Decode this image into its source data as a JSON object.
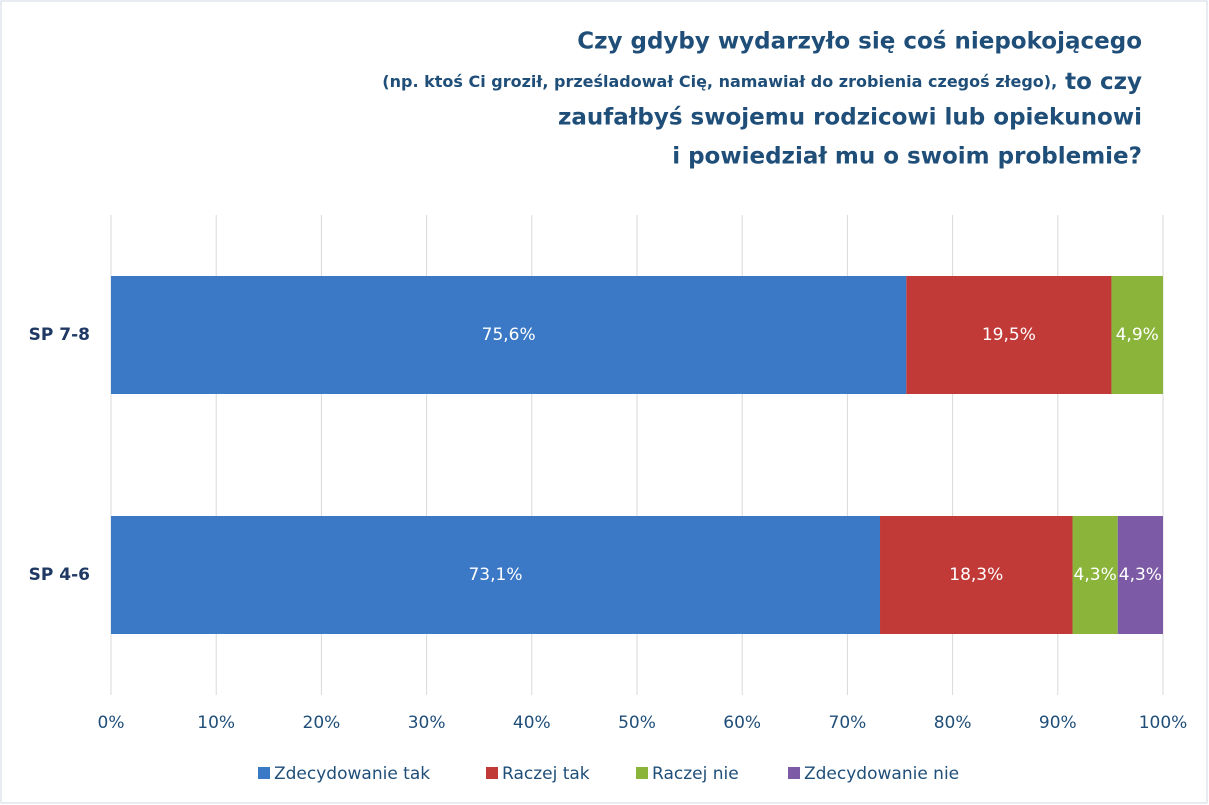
{
  "chart_data": {
    "type": "stacked_barh",
    "title_parts": [
      "Czy gdyby wydarzyło się coś niepokojącego",
      "(np. ktoś Ci groził, prześladował Cię, namawiał do zrobienia czegoś złego),",
      "to czy",
      "zaufałbyś swojemu rodzicowi lub opiekunowi",
      "i powiedział mu o swoim problemie?"
    ],
    "categories": [
      "SP 7-8",
      "SP 4-6"
    ],
    "series": [
      {
        "name": "Zdecydowanie tak",
        "color": "#3b78c6",
        "values": [
          75.6,
          73.1
        ],
        "value_labels": [
          "75,6%",
          "73,1%"
        ]
      },
      {
        "name": "Raczej tak",
        "color": "#c13a38",
        "values": [
          19.5,
          18.3
        ],
        "value_labels": [
          "19,5%",
          "18,3%"
        ]
      },
      {
        "name": "Raczej nie",
        "color": "#8ab53a",
        "values": [
          4.9,
          4.3
        ],
        "value_labels": [
          "4,9%",
          "4,3%"
        ]
      },
      {
        "name": "Zdecydowanie nie",
        "color": "#7d5aa5",
        "values": [
          null,
          4.3
        ],
        "value_labels": [
          null,
          "4,3%"
        ]
      }
    ],
    "xlim": [
      0,
      100
    ],
    "xticks": [
      {
        "value": 0,
        "label": "0%"
      },
      {
        "value": 10,
        "label": "10%"
      },
      {
        "value": 20,
        "label": "20%"
      },
      {
        "value": 30,
        "label": "30%"
      },
      {
        "value": 40,
        "label": "40%"
      },
      {
        "value": 50,
        "label": "50%"
      },
      {
        "value": 60,
        "label": "60%"
      },
      {
        "value": 70,
        "label": "70%"
      },
      {
        "value": 80,
        "label": "80%"
      },
      {
        "value": 90,
        "label": "90%"
      },
      {
        "value": 100,
        "label": "100%"
      }
    ],
    "grid": true,
    "legend": "bottom"
  }
}
